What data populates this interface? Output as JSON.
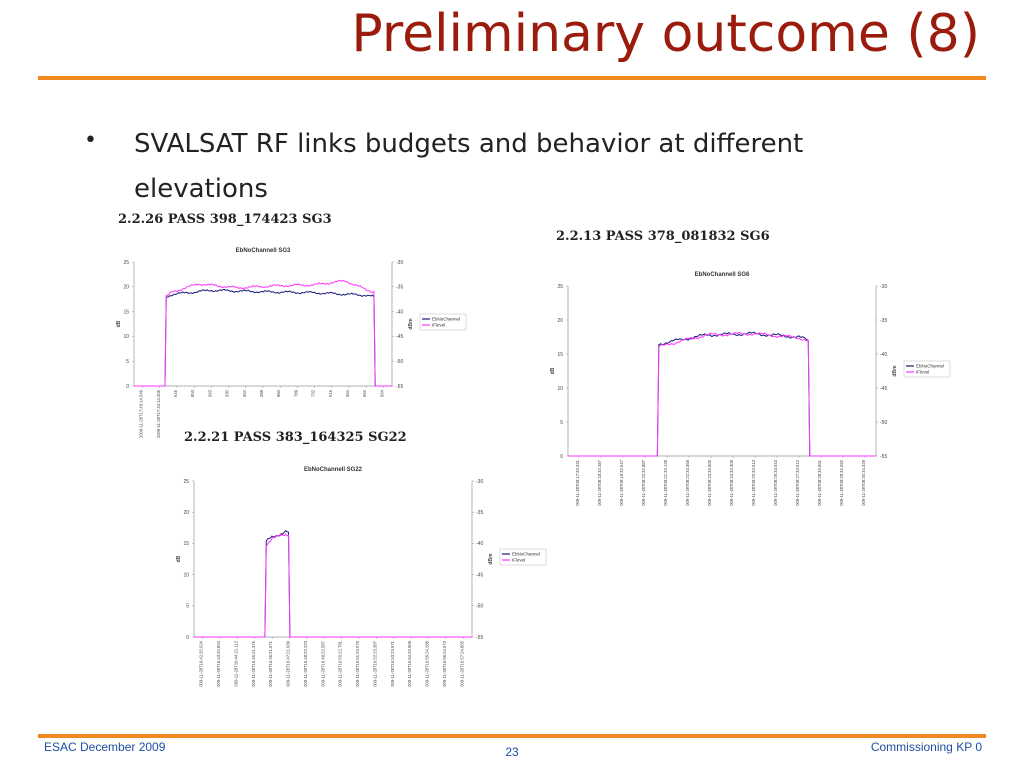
{
  "slide": {
    "title": "Preliminary outcome (8)",
    "bullet_marker": "•",
    "bullet_text": "SVALSAT RF links budgets and behavior at different elevations"
  },
  "colors": {
    "title": "#9b1c0c",
    "rule": "#f08a1e",
    "footer": "#1f4ea3",
    "ebno": "#1a1a7a",
    "iflevel": "#ff33ff"
  },
  "charts": [
    {
      "heading": "2.2.26   PASS 398_174423 SG3",
      "title": "EbNoChannell SG3",
      "left_axis_label": "dB",
      "right_axis_label": "dBm",
      "left_ticks": [
        "25",
        "20",
        "15",
        "10",
        "5",
        "0"
      ],
      "right_ticks": [
        "-30",
        "-35",
        "-40",
        "-45",
        "-50",
        "-55"
      ],
      "x_tick_labels": [
        "2009-11-28T17:43:14.049",
        "2009-11-28T17:44:14.405",
        "616",
        "853",
        "663",
        "330",
        "564",
        "398",
        "960",
        "789",
        "732",
        "616",
        "564",
        "664",
        "664"
      ],
      "legend": [
        "EbNoChannel",
        "IFlevel"
      ]
    },
    {
      "heading": "2.2.13   PASS 378_081832 SG6",
      "title": "EbNoChannell SG6",
      "left_axis_label": "dB",
      "right_axis_label": "dBm",
      "left_ticks": [
        "25",
        "20",
        "15",
        "10",
        "5",
        "0"
      ],
      "right_ticks": [
        "-30",
        "-35",
        "-40",
        "-45",
        "-50",
        "-55"
      ],
      "x_tick_labels": [
        "2009-11-28T08:17:33.031",
        "2009-11-28T08:18:32.487",
        "2009-11-28T08:19:32.647",
        "2009-11-28T08:20:32.887",
        "2009-11-28T08:21:33.128",
        "2009-11-28T08:22:33.368",
        "2009-11-28T08:23:33.605",
        "2009-11-28T08:24:33.309",
        "2009-11-28T08:25:33.513",
        "2009-11-28T08:26:33.043",
        "2009-11-28T08:27:33.612",
        "2009-11-28T08:28:33.651",
        "2009-11-28T08:29:34.092",
        "2009-11-28T08:30:34.329"
      ],
      "legend": [
        "EbNoChannel",
        "IFlevel"
      ]
    },
    {
      "heading": "2.2.21   PASS 383_164325 SG22",
      "title": "EbNoChannell SG22",
      "left_axis_label": "dB",
      "right_axis_label": "dBm",
      "left_ticks": [
        "25",
        "20",
        "15",
        "10",
        "5",
        "0"
      ],
      "right_ticks": [
        "-30",
        "-35",
        "-40",
        "-45",
        "-50",
        "-55"
      ],
      "x_tick_labels": [
        "2009-11-28T16:42:20.024",
        "2009-11-28T16:43:20.844",
        "2009-11-28T16:44:21.112",
        "2009-11-28T16:45:21.376",
        "2009-11-28T16:46:21.671",
        "2009-11-28T16:47:21.939",
        "2009-11-28T16:48:22.223",
        "2009-11-28T16:49:22.587",
        "2009-11-28T16:50:22.781",
        "2009-11-28T16:51:23.079",
        "2009-11-28T16:52:23.387",
        "2009-11-28T16:53:23.671",
        "2009-11-28T16:54:23.909",
        "2009-11-28T16:55:24.288",
        "2009-11-28T16:56:24.573",
        "2009-11-28T16:57:24.855"
      ],
      "legend": [
        "EbNoChannel",
        "IFlevel"
      ]
    }
  ],
  "chart_data": [
    {
      "type": "line",
      "title": "EbNoChannell SG3",
      "ylabel": "dB",
      "ylim": [
        0,
        25
      ],
      "y2label": "dBm",
      "y2lim": [
        -55,
        -30
      ],
      "grid": false,
      "legend_position": "right",
      "series": [
        {
          "name": "EbNoChannel",
          "axis": "left",
          "x": [
            0,
            0.12,
            0.125,
            0.15,
            0.3,
            0.5,
            0.7,
            0.9,
            0.93,
            0.935,
            1.0
          ],
          "values": [
            0,
            0,
            18,
            18.5,
            19.3,
            19.0,
            18.8,
            18.3,
            18.0,
            0,
            0
          ]
        },
        {
          "name": "IFlevel",
          "axis": "right",
          "x": [
            0,
            0.12,
            0.125,
            0.15,
            0.25,
            0.4,
            0.55,
            0.7,
            0.82,
            0.9,
            0.93,
            0.935,
            1.0
          ],
          "values": [
            -55,
            -55,
            -37,
            -36,
            -34.4,
            -35.2,
            -34.8,
            -34.6,
            -33.8,
            -35.6,
            -36.0,
            -55,
            -55
          ]
        }
      ]
    },
    {
      "type": "line",
      "title": "EbNoChannell SG6",
      "ylabel": "dB",
      "ylim": [
        0,
        25
      ],
      "y2label": "dBm",
      "y2lim": [
        -55,
        -30
      ],
      "grid": false,
      "legend_position": "right",
      "series": [
        {
          "name": "EbNoChannel",
          "axis": "left",
          "x": [
            0,
            0.29,
            0.295,
            0.33,
            0.45,
            0.6,
            0.75,
            0.78,
            0.785,
            1.0
          ],
          "values": [
            0,
            0,
            16.5,
            16.8,
            17.8,
            18.0,
            17.5,
            17.0,
            0,
            0
          ]
        },
        {
          "name": "IFlevel",
          "axis": "right",
          "x": [
            0,
            0.29,
            0.295,
            0.33,
            0.45,
            0.6,
            0.75,
            0.78,
            0.785,
            1.0
          ],
          "values": [
            -55,
            -55,
            -39,
            -38.5,
            -37.2,
            -37.0,
            -37.6,
            -38.0,
            -55,
            -55
          ]
        }
      ]
    },
    {
      "type": "line",
      "title": "EbNoChannell SG22",
      "ylabel": "dB",
      "ylim": [
        0,
        25
      ],
      "y2label": "dBm",
      "y2lim": [
        -55,
        -30
      ],
      "grid": false,
      "legend_position": "right",
      "series": [
        {
          "name": "EbNoChannel",
          "axis": "left",
          "x": [
            0,
            0.255,
            0.26,
            0.28,
            0.33,
            0.34,
            0.345,
            1.0
          ],
          "values": [
            0,
            0,
            15.3,
            16.0,
            16.9,
            16.8,
            0,
            0
          ]
        },
        {
          "name": "IFlevel",
          "axis": "right",
          "x": [
            0,
            0.255,
            0.26,
            0.28,
            0.33,
            0.34,
            0.345,
            1.0
          ],
          "values": [
            -55,
            -55,
            -40.2,
            -39.3,
            -38.5,
            -38.7,
            -55,
            -55
          ]
        }
      ]
    }
  ],
  "footer": {
    "left": "ESAC December 2009",
    "center": "23",
    "right": "Commissioning KP 0"
  }
}
